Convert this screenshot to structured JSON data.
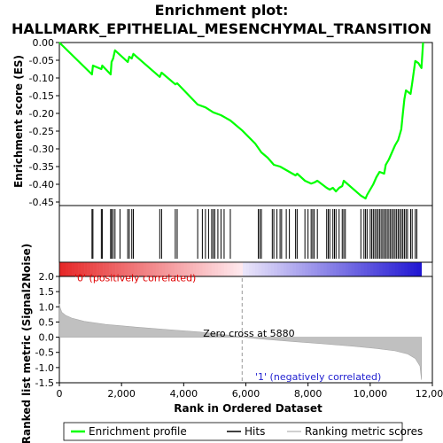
{
  "chart_data": {
    "type": "line",
    "title_line1": "Enrichment plot:",
    "title_line2": "HALLMARK_EPITHELIAL_MESENCHYMAL_TRANSITION",
    "es_panel": {
      "ylabel": "Enrichment score (ES)",
      "ylim": [
        -0.46,
        0.0
      ],
      "yticks": [
        "0.00",
        "-0.05",
        "-0.10",
        "-0.15",
        "-0.20",
        "-0.25",
        "-0.30",
        "-0.35",
        "-0.40",
        "-0.45"
      ],
      "ytick_values": [
        0.0,
        -0.05,
        -0.1,
        -0.15,
        -0.2,
        -0.25,
        -0.3,
        -0.35,
        -0.4,
        -0.45
      ],
      "color": "#00ff00",
      "points": [
        [
          0,
          0.0
        ],
        [
          1050,
          -0.09
        ],
        [
          1080,
          -0.065
        ],
        [
          1350,
          -0.075
        ],
        [
          1380,
          -0.065
        ],
        [
          1650,
          -0.09
        ],
        [
          1680,
          -0.055
        ],
        [
          1730,
          -0.045
        ],
        [
          1790,
          -0.022
        ],
        [
          2200,
          -0.055
        ],
        [
          2250,
          -0.04
        ],
        [
          2330,
          -0.045
        ],
        [
          2380,
          -0.032
        ],
        [
          3230,
          -0.097
        ],
        [
          3290,
          -0.085
        ],
        [
          3730,
          -0.118
        ],
        [
          3790,
          -0.115
        ],
        [
          4450,
          -0.175
        ],
        [
          4700,
          -0.183
        ],
        [
          4950,
          -0.197
        ],
        [
          5200,
          -0.205
        ],
        [
          5500,
          -0.22
        ],
        [
          5880,
          -0.248
        ],
        [
          6300,
          -0.285
        ],
        [
          6500,
          -0.31
        ],
        [
          6700,
          -0.325
        ],
        [
          6900,
          -0.345
        ],
        [
          7100,
          -0.35
        ],
        [
          7400,
          -0.365
        ],
        [
          7600,
          -0.375
        ],
        [
          7650,
          -0.37
        ],
        [
          7900,
          -0.39
        ],
        [
          8100,
          -0.398
        ],
        [
          8200,
          -0.395
        ],
        [
          8300,
          -0.39
        ],
        [
          8600,
          -0.41
        ],
        [
          8700,
          -0.415
        ],
        [
          8800,
          -0.41
        ],
        [
          8900,
          -0.42
        ],
        [
          9000,
          -0.41
        ],
        [
          9100,
          -0.405
        ],
        [
          9150,
          -0.39
        ],
        [
          9700,
          -0.432
        ],
        [
          9850,
          -0.44
        ],
        [
          9900,
          -0.43
        ],
        [
          10000,
          -0.415
        ],
        [
          10100,
          -0.4
        ],
        [
          10200,
          -0.38
        ],
        [
          10300,
          -0.365
        ],
        [
          10450,
          -0.37
        ],
        [
          10500,
          -0.345
        ],
        [
          10600,
          -0.33
        ],
        [
          10700,
          -0.31
        ],
        [
          10800,
          -0.29
        ],
        [
          10900,
          -0.275
        ],
        [
          11000,
          -0.245
        ],
        [
          11050,
          -0.2
        ],
        [
          11100,
          -0.16
        ],
        [
          11150,
          -0.135
        ],
        [
          11300,
          -0.145
        ],
        [
          11350,
          -0.115
        ],
        [
          11450,
          -0.052
        ],
        [
          11550,
          -0.058
        ],
        [
          11650,
          -0.072
        ],
        [
          11700,
          0.0
        ]
      ]
    },
    "hits": [
      1050,
      1080,
      1350,
      1380,
      1650,
      1680,
      1730,
      1790,
      1950,
      2200,
      2250,
      2330,
      2380,
      3230,
      3290,
      3730,
      3790,
      4450,
      4600,
      4700,
      4800,
      4900,
      4950,
      5000,
      5100,
      5200,
      5300,
      5500,
      6400,
      6450,
      6500,
      6850,
      6900,
      7000,
      7100,
      7150,
      7300,
      7400,
      7600,
      7650,
      7900,
      8000,
      8100,
      8150,
      8200,
      8300,
      8600,
      8650,
      8700,
      8800,
      8850,
      8900,
      9000,
      9100,
      9150,
      9200,
      9700,
      9800,
      9850,
      9900,
      10000,
      10050,
      10100,
      10150,
      10200,
      10250,
      10300,
      10350,
      10400,
      10450,
      10500,
      10550,
      10600,
      10650,
      10700,
      10750,
      10800,
      10850,
      10900,
      10950,
      11000,
      11050,
      11100,
      11150,
      11200,
      11300,
      11350,
      11450,
      11500
    ],
    "ranked_panel": {
      "ylabel": "Ranked list metric (Signal2Noise)",
      "ylim": [
        -1.5,
        2.0
      ],
      "yticks": [
        "2.0",
        "1.5",
        "1.0",
        "0.5",
        "0.0",
        "-0.5",
        "-1.0",
        "-1.5"
      ],
      "ytick_values": [
        2.0,
        1.5,
        1.0,
        0.5,
        0.0,
        -0.5,
        -1.0,
        -1.5
      ],
      "curve": [
        [
          0,
          1.1
        ],
        [
          30,
          0.95
        ],
        [
          80,
          0.82
        ],
        [
          200,
          0.72
        ],
        [
          400,
          0.63
        ],
        [
          800,
          0.52
        ],
        [
          1500,
          0.42
        ],
        [
          2500,
          0.33
        ],
        [
          3500,
          0.25
        ],
        [
          4500,
          0.17
        ],
        [
          5500,
          0.06
        ],
        [
          5880,
          0.0
        ],
        [
          6500,
          -0.06
        ],
        [
          7500,
          -0.14
        ],
        [
          8500,
          -0.22
        ],
        [
          9500,
          -0.3
        ],
        [
          10200,
          -0.37
        ],
        [
          10800,
          -0.45
        ],
        [
          11200,
          -0.55
        ],
        [
          11450,
          -0.7
        ],
        [
          11600,
          -0.95
        ],
        [
          11650,
          -1.4
        ]
      ],
      "zero_cross_label": "Zero cross at 5880",
      "zero_cross": 5880,
      "pos_label": "'0' (positively correlated)",
      "neg_label": "'1' (negatively correlated)"
    },
    "xaxis": {
      "label": "Rank in Ordered Dataset",
      "xlim": [
        0,
        12000
      ],
      "xticks": [
        "0",
        "2,000",
        "4,000",
        "6,000",
        "8,000",
        "10,000",
        "12,000"
      ],
      "xtick_values": [
        0,
        2000,
        4000,
        6000,
        8000,
        10000,
        12000
      ],
      "n_genes": 11650
    },
    "legend": [
      {
        "label": "Enrichment profile",
        "color": "#00ff00",
        "kind": "line"
      },
      {
        "label": "Hits",
        "color": "#000000",
        "kind": "line"
      },
      {
        "label": "Ranking metric scores",
        "color": "#c0c0c0",
        "kind": "line"
      }
    ]
  }
}
